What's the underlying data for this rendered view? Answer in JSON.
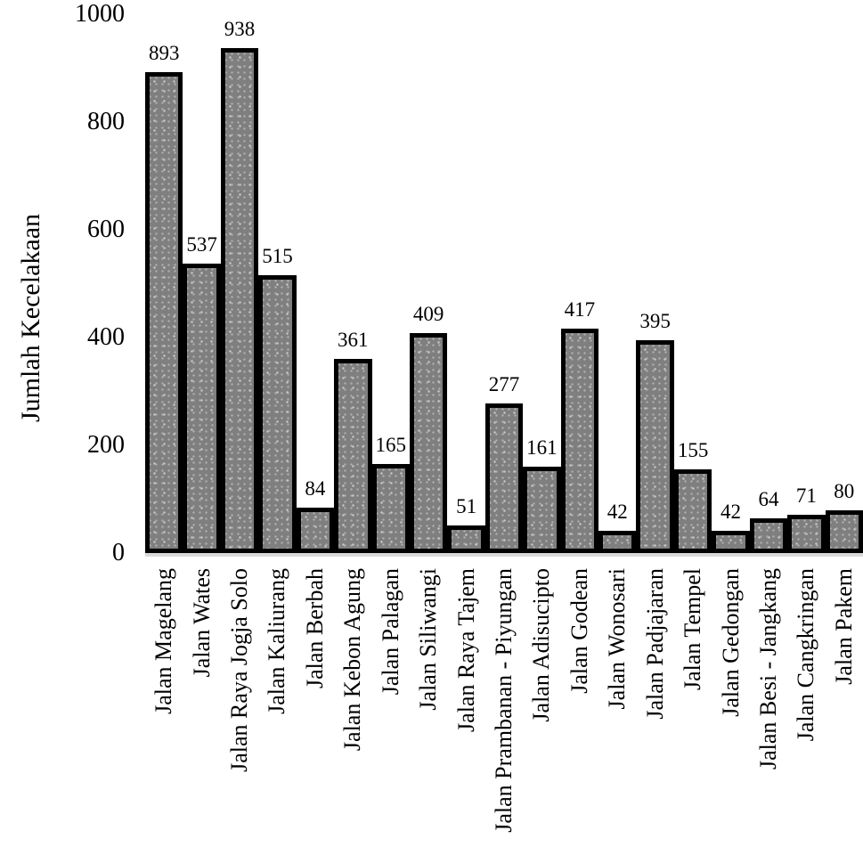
{
  "chart_data": {
    "type": "bar",
    "title": "",
    "xlabel": "",
    "ylabel": "Jumlah Kecelakaan",
    "ylim": [
      0,
      1000
    ],
    "yticks": [
      0,
      200,
      400,
      600,
      800,
      1000
    ],
    "grid": false,
    "legend": false,
    "bar_fill_color": "#7f7f7f",
    "bar_border_color": "#000000",
    "axis_shadow_color": "#d9d9d9",
    "categories": [
      "Jalan Magelang",
      "Jalan Wates",
      "Jalan Raya Jogja Solo",
      "Jalan Kaliurang",
      "Jalan Berbah",
      "Jalan Kebon Agung",
      "Jalan Palagan",
      "Jalan Siliwangi",
      "Jalan Raya Tajem",
      "Jalan Prambanan - Piyungan",
      "Jalan Adisucipto",
      "Jalan Godean",
      "Jalan Wonosari",
      "Jalan Padjajaran",
      "Jalan Tempel",
      "Jalan Gedongan",
      "Jalan Besi - Jangkang",
      "Jalan Cangkringan",
      "Jalan Pakem"
    ],
    "values": [
      893,
      537,
      938,
      515,
      84,
      361,
      165,
      409,
      51,
      277,
      161,
      417,
      42,
      395,
      155,
      42,
      64,
      71,
      80
    ],
    "data_labels_visible": true
  }
}
